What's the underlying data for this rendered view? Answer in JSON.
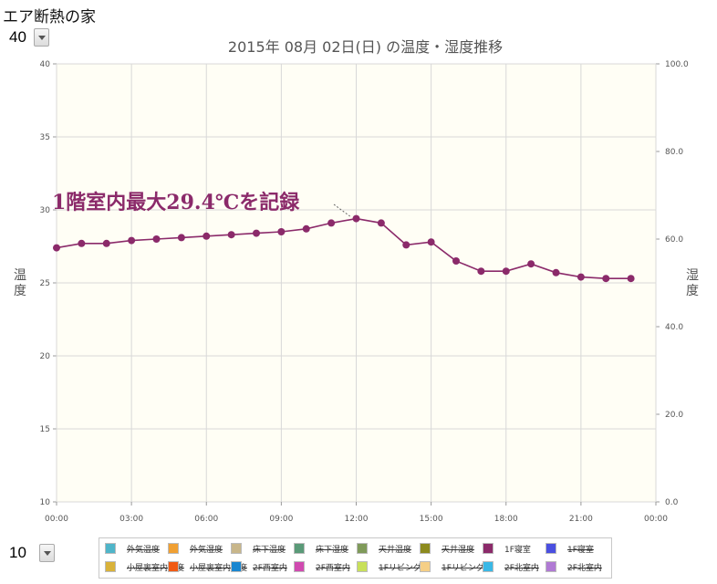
{
  "app_title": "エア断熱の家",
  "top_select": {
    "value": "40"
  },
  "bottom_select": {
    "value": "10"
  },
  "chart_data": {
    "type": "line",
    "title": "2015年 08月 02日(日) の温度・湿度推移",
    "ylabel": "温度",
    "y2label": "湿度",
    "ylim": [
      10,
      40
    ],
    "y2lim": [
      0,
      100
    ],
    "yticks": [
      "10",
      "15",
      "20",
      "25",
      "30",
      "35",
      "40"
    ],
    "y2ticks": [
      "0.0",
      "20.0",
      "40.0",
      "60.0",
      "80.0",
      "100.0"
    ],
    "xlim": [
      0,
      24
    ],
    "xticks": [
      "00:00",
      "03:00",
      "06:00",
      "09:00",
      "12:00",
      "15:00",
      "18:00",
      "21:00",
      "00:00"
    ],
    "grid": true,
    "annotation": {
      "text": "1階室内最大29.4℃を記録",
      "x": 12,
      "y": 29.4
    },
    "series": [
      {
        "name": "1F寝室",
        "color": "#8b2a6a",
        "x": [
          0,
          1,
          2,
          3,
          4,
          5,
          6,
          7,
          8,
          9,
          10,
          11,
          12,
          13,
          14,
          15,
          16,
          17,
          18,
          19,
          20,
          21,
          22,
          23
        ],
        "y": [
          27.4,
          27.7,
          27.7,
          27.9,
          28.0,
          28.1,
          28.2,
          28.3,
          28.4,
          28.5,
          28.7,
          29.1,
          29.4,
          29.1,
          27.6,
          27.8,
          26.5,
          25.8,
          25.8,
          26.3,
          25.7,
          25.4,
          25.3,
          25.3
        ]
      }
    ]
  },
  "legend": {
    "items": [
      {
        "label": "外気温度",
        "color": "#4fb5c9",
        "active": false
      },
      {
        "label": "外気湿度",
        "color": "#f0a033",
        "active": false
      },
      {
        "label": "床下温度",
        "color": "#c8b68a",
        "active": false
      },
      {
        "label": "床下湿度",
        "color": "#5a9a78",
        "active": false
      },
      {
        "label": "天井温度",
        "color": "#7f9a5a",
        "active": false
      },
      {
        "label": "天井湿度",
        "color": "#8c8a1e",
        "active": false
      },
      {
        "label": "1F寝室",
        "color": "#8b2a6a",
        "active": true
      },
      {
        "label": "1F寝室",
        "color": "#4a4fe0",
        "active": false
      },
      {
        "label": "小屋裏室内温度",
        "color": "#d9b23a",
        "active": false
      },
      {
        "label": "小屋裏室内湿度",
        "color": "#f05a14",
        "active": false
      },
      {
        "label": "2F西室内",
        "color": "#1a86d0",
        "active": false
      },
      {
        "label": "2F西室内",
        "color": "#d04ab0",
        "active": false
      },
      {
        "label": "1FリビングI",
        "color": "#c8e05a",
        "active": false
      },
      {
        "label": "1Fリビング",
        "color": "#f5cf86",
        "active": false
      },
      {
        "label": "2F北室内",
        "color": "#3ab8e6",
        "active": false
      },
      {
        "label": "2F北室内",
        "color": "#b07ad4",
        "active": false
      }
    ]
  }
}
